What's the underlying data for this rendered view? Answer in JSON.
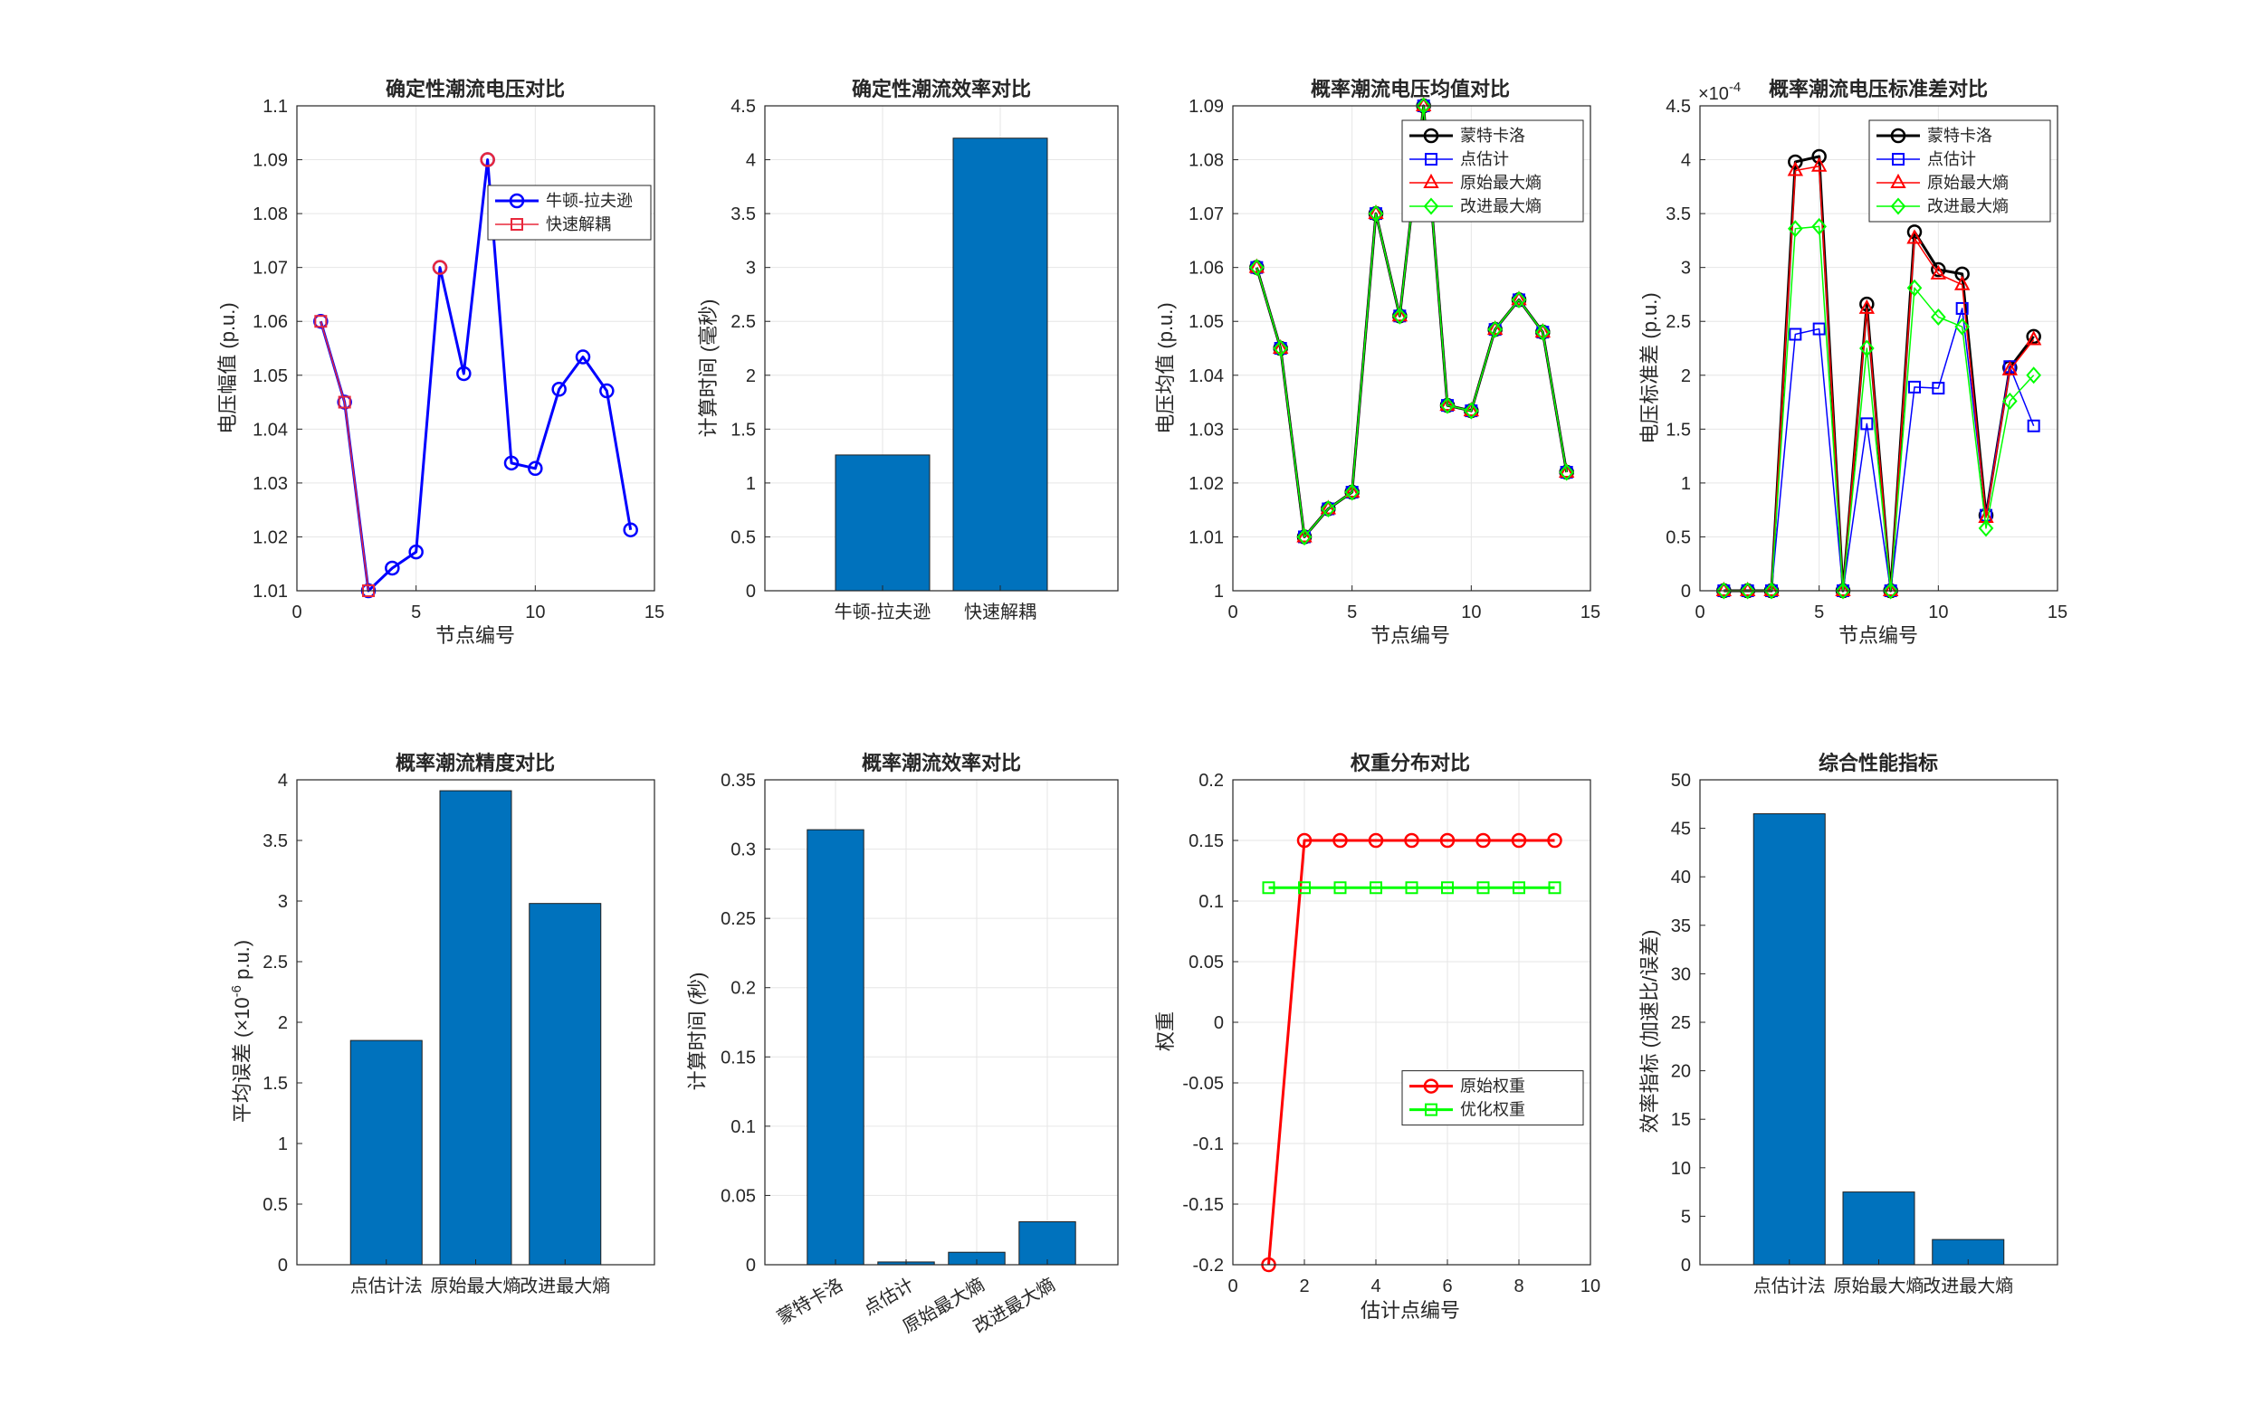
{
  "figure": {
    "background": "#ffffff"
  },
  "chart_data": [
    {
      "id": "p1",
      "type": "line",
      "title": "确定性潮流电压对比",
      "xlabel": "节点编号",
      "ylabel": "电压幅值 (p.u.)",
      "xlim": [
        0,
        15
      ],
      "ylim": [
        1.01,
        1.1
      ],
      "xticks": [
        0,
        5,
        10,
        15
      ],
      "yticks": [
        1.01,
        1.02,
        1.03,
        1.04,
        1.05,
        1.06,
        1.07,
        1.08,
        1.09,
        1.1
      ],
      "ytick_labels": [
        "1.01",
        "1.02",
        "1.03",
        "1.04",
        "1.05",
        "1.06",
        "1.07",
        "1.08",
        "1.09",
        "1.1"
      ],
      "grid": true,
      "legend": "upper-right-inside",
      "series": [
        {
          "name": "牛顿-拉夫逊",
          "color": "#0000ff",
          "marker": "circle",
          "width": 3,
          "x": [
            1,
            2,
            3,
            4,
            5,
            6,
            7,
            8,
            9,
            10,
            11,
            12,
            13,
            14
          ],
          "y": [
            1.06,
            1.045,
            1.01,
            1.0142,
            1.0172,
            1.07,
            1.0503,
            1.09,
            1.0337,
            1.0327,
            1.0474,
            1.0534,
            1.0471,
            1.0213
          ]
        },
        {
          "name": "快速解耦",
          "color": "#e8283c",
          "marker": "square",
          "width": 1.5,
          "x": [
            1,
            2,
            3
          ],
          "y": [
            1.06,
            1.045,
            1.01
          ]
        }
      ],
      "overlay_markers": {
        "color": "#e8283c",
        "marker": "circle",
        "x": [
          6,
          8
        ],
        "y": [
          1.07,
          1.09
        ]
      }
    },
    {
      "id": "p2",
      "type": "bar",
      "title": "确定性潮流效率对比",
      "xlabel": "",
      "ylabel": "计算时间 (毫秒)",
      "categories": [
        "牛顿-拉夫逊",
        "快速解耦"
      ],
      "values": [
        1.26,
        4.2
      ],
      "ylim": [
        0,
        4.5
      ],
      "yticks": [
        0,
        0.5,
        1,
        1.5,
        2,
        2.5,
        3,
        3.5,
        4,
        4.5
      ],
      "ytick_labels": [
        "0",
        "0.5",
        "1",
        "1.5",
        "2",
        "2.5",
        "3",
        "3.5",
        "4",
        "4.5"
      ],
      "grid": true,
      "bar_color": "#0072bd"
    },
    {
      "id": "p3",
      "type": "line",
      "title": "概率潮流电压均值对比",
      "xlabel": "节点编号",
      "ylabel": "电压均值 (p.u.)",
      "xlim": [
        0,
        15
      ],
      "ylim": [
        1,
        1.09
      ],
      "xticks": [
        0,
        5,
        10,
        15
      ],
      "yticks": [
        1,
        1.01,
        1.02,
        1.03,
        1.04,
        1.05,
        1.06,
        1.07,
        1.08,
        1.09
      ],
      "ytick_labels": [
        "1",
        "1.01",
        "1.02",
        "1.03",
        "1.04",
        "1.05",
        "1.06",
        "1.07",
        "1.08",
        "1.09"
      ],
      "grid": true,
      "legend": "upper-right-inside",
      "series": [
        {
          "name": "蒙特卡洛",
          "color": "#000000",
          "marker": "circle",
          "width": 3,
          "x": [
            1,
            2,
            3,
            4,
            5,
            6,
            7,
            8,
            9,
            10,
            11,
            12,
            13,
            14
          ],
          "y": [
            1.06,
            1.045,
            1.01,
            1.0152,
            1.0183,
            1.07,
            1.051,
            1.09,
            1.0344,
            1.0334,
            1.0485,
            1.054,
            1.048,
            1.022
          ]
        },
        {
          "name": "点估计",
          "color": "#0000ff",
          "marker": "square",
          "width": 1.5,
          "x": [
            1,
            2,
            3,
            4,
            5,
            6,
            7,
            8,
            9,
            10,
            11,
            12,
            13,
            14
          ],
          "y": [
            1.06,
            1.045,
            1.01,
            1.0152,
            1.0183,
            1.07,
            1.051,
            1.09,
            1.0344,
            1.0334,
            1.0485,
            1.054,
            1.048,
            1.022
          ]
        },
        {
          "name": "原始最大熵",
          "color": "#ff0000",
          "marker": "triangle",
          "width": 1.5,
          "x": [
            1,
            2,
            3,
            4,
            5,
            6,
            7,
            8,
            9,
            10,
            11,
            12,
            13,
            14
          ],
          "y": [
            1.06,
            1.045,
            1.01,
            1.0152,
            1.0183,
            1.07,
            1.051,
            1.09,
            1.0344,
            1.0334,
            1.0485,
            1.054,
            1.048,
            1.022
          ]
        },
        {
          "name": "改进最大熵",
          "color": "#00ff00",
          "marker": "diamond",
          "width": 1.5,
          "x": [
            1,
            2,
            3,
            4,
            5,
            6,
            7,
            8,
            9,
            10,
            11,
            12,
            13,
            14
          ],
          "y": [
            1.06,
            1.045,
            1.01,
            1.0152,
            1.0183,
            1.07,
            1.051,
            1.09,
            1.0344,
            1.0334,
            1.0485,
            1.054,
            1.048,
            1.022
          ]
        }
      ]
    },
    {
      "id": "p4",
      "type": "line",
      "title": "概率潮流电压标准差对比",
      "xlabel": "节点编号",
      "ylabel": "电压标准差 (p.u.)",
      "exponent_label": "×10",
      "exponent": "-4",
      "xlim": [
        0,
        15
      ],
      "ylim": [
        0,
        4.5
      ],
      "xticks": [
        0,
        5,
        10,
        15
      ],
      "yticks": [
        0,
        0.5,
        1,
        1.5,
        2,
        2.5,
        3,
        3.5,
        4,
        4.5
      ],
      "ytick_labels": [
        "0",
        "0.5",
        "1",
        "1.5",
        "2",
        "2.5",
        "3",
        "3.5",
        "4",
        "4.5"
      ],
      "grid": true,
      "legend": "upper-right-inside",
      "series": [
        {
          "name": "蒙特卡洛",
          "color": "#000000",
          "marker": "circle",
          "width": 3,
          "x": [
            1,
            2,
            3,
            4,
            5,
            6,
            7,
            8,
            9,
            10,
            11,
            12,
            13,
            14
          ],
          "y": [
            0,
            0,
            0,
            3.98,
            4.03,
            0,
            2.66,
            0,
            3.33,
            2.98,
            2.94,
            0.7,
            2.07,
            2.36
          ]
        },
        {
          "name": "点估计",
          "color": "#0000ff",
          "marker": "square",
          "width": 1.5,
          "x": [
            1,
            2,
            3,
            4,
            5,
            6,
            7,
            8,
            9,
            10,
            11,
            12,
            13,
            14
          ],
          "y": [
            0,
            0,
            0,
            2.38,
            2.43,
            0,
            1.55,
            0,
            1.89,
            1.88,
            2.62,
            0.7,
            2.08,
            1.53
          ]
        },
        {
          "name": "原始最大熵",
          "color": "#ff0000",
          "marker": "triangle",
          "width": 1.5,
          "x": [
            1,
            2,
            3,
            4,
            5,
            6,
            7,
            8,
            9,
            10,
            11,
            12,
            13,
            14
          ],
          "y": [
            0,
            0,
            0,
            3.9,
            3.94,
            0,
            2.62,
            0,
            3.27,
            2.94,
            2.84,
            0.68,
            2.05,
            2.33
          ]
        },
        {
          "name": "改进最大熵",
          "color": "#00ff00",
          "marker": "diamond",
          "width": 1.5,
          "x": [
            1,
            2,
            3,
            4,
            5,
            6,
            7,
            8,
            9,
            10,
            11,
            12,
            13,
            14
          ],
          "y": [
            0,
            0,
            0,
            3.36,
            3.38,
            0,
            2.25,
            0,
            2.81,
            2.54,
            2.45,
            0.58,
            1.76,
            2.0
          ]
        }
      ]
    },
    {
      "id": "p5",
      "type": "bar",
      "title": "概率潮流精度对比",
      "xlabel": "",
      "ylabel": "平均误差 (×10",
      "ylabel_sup": "-6",
      "ylabel_tail": " p.u.)",
      "categories": [
        "点估计法",
        "原始最大熵",
        "改进最大熵"
      ],
      "values": [
        1.85,
        3.91,
        2.98
      ],
      "ylim": [
        0,
        4
      ],
      "yticks": [
        0,
        0.5,
        1,
        1.5,
        2,
        2.5,
        3,
        3.5,
        4
      ],
      "ytick_labels": [
        "0",
        "0.5",
        "1",
        "1.5",
        "2",
        "2.5",
        "3",
        "3.5",
        "4"
      ],
      "grid": false,
      "bar_color": "#0072bd"
    },
    {
      "id": "p6",
      "type": "bar",
      "title": "概率潮流效率对比",
      "xlabel": "",
      "ylabel": "计算时间 (秒)",
      "categories": [
        "蒙特卡洛",
        "点估计",
        "原始最大熵",
        "改进最大熵"
      ],
      "values": [
        0.314,
        0.002,
        0.009,
        0.031
      ],
      "ylim": [
        0,
        0.35
      ],
      "yticks": [
        0,
        0.05,
        0.1,
        0.15,
        0.2,
        0.25,
        0.3,
        0.35
      ],
      "ytick_labels": [
        "0",
        "0.05",
        "0.1",
        "0.15",
        "0.2",
        "0.25",
        "0.3",
        "0.35"
      ],
      "grid": true,
      "bar_color": "#0072bd",
      "xtick_rotation": -30
    },
    {
      "id": "p7",
      "type": "line",
      "title": "权重分布对比",
      "xlabel": "估计点编号",
      "ylabel": "权重",
      "xlim": [
        0,
        10
      ],
      "ylim": [
        -0.2,
        0.2
      ],
      "xticks": [
        0,
        2,
        4,
        6,
        8,
        10
      ],
      "yticks": [
        -0.2,
        -0.15,
        -0.1,
        -0.05,
        0,
        0.05,
        0.1,
        0.15,
        0.2
      ],
      "ytick_labels": [
        "-0.2",
        "-0.15",
        "-0.1",
        "-0.05",
        "0",
        "0.05",
        "0.1",
        "0.15",
        "0.2"
      ],
      "grid": true,
      "legend": "middle-right-inside",
      "series": [
        {
          "name": "原始权重",
          "color": "#ff0000",
          "marker": "circle",
          "width": 3,
          "x": [
            1,
            2,
            3,
            4,
            5,
            6,
            7,
            8,
            9
          ],
          "y": [
            -0.2,
            0.15,
            0.15,
            0.15,
            0.15,
            0.15,
            0.15,
            0.15,
            0.15
          ]
        },
        {
          "name": "优化权重",
          "color": "#00ff00",
          "marker": "square",
          "width": 3,
          "x": [
            1,
            2,
            3,
            4,
            5,
            6,
            7,
            8,
            9
          ],
          "y": [
            0.111,
            0.111,
            0.111,
            0.111,
            0.111,
            0.111,
            0.111,
            0.111,
            0.111
          ]
        }
      ]
    },
    {
      "id": "p8",
      "type": "bar",
      "title": "综合性能指标",
      "xlabel": "",
      "ylabel": "效率指标 (加速比/误差)",
      "categories": [
        "点估计法",
        "原始最大熵",
        "改进最大熵"
      ],
      "values": [
        46.5,
        7.5,
        2.6
      ],
      "ylim": [
        0,
        50
      ],
      "yticks": [
        0,
        5,
        10,
        15,
        20,
        25,
        30,
        35,
        40,
        45,
        50
      ],
      "ytick_labels": [
        "0",
        "5",
        "10",
        "15",
        "20",
        "25",
        "30",
        "35",
        "40",
        "45",
        "50"
      ],
      "grid": false,
      "bar_color": "#0072bd"
    }
  ]
}
